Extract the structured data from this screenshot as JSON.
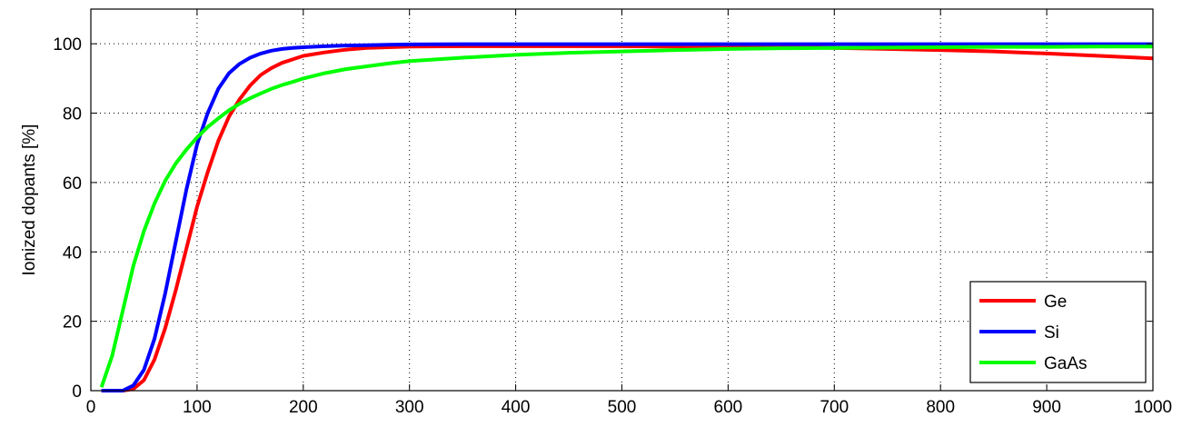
{
  "chart_data": {
    "type": "line",
    "title": "",
    "xlabel": "",
    "ylabel": "Ionized dopants [%]",
    "xlim": [
      0,
      1000
    ],
    "ylim": [
      0,
      110
    ],
    "xticks": [
      0,
      100,
      200,
      300,
      400,
      500,
      600,
      700,
      800,
      900,
      1000
    ],
    "yticks": [
      0,
      20,
      40,
      60,
      80,
      100
    ],
    "grid": true,
    "legend_position": "bottom-right",
    "series": [
      {
        "name": "Ge",
        "color": "#ff0000",
        "x": [
          10,
          20,
          30,
          40,
          50,
          60,
          70,
          80,
          90,
          100,
          110,
          120,
          130,
          140,
          150,
          160,
          170,
          180,
          190,
          200,
          220,
          240,
          260,
          280,
          300,
          350,
          400,
          450,
          500,
          550,
          600,
          650,
          700,
          750,
          800,
          850,
          900,
          950,
          1000
        ],
        "y": [
          0,
          0,
          0,
          0.5,
          3,
          9,
          18,
          29,
          41,
          53,
          63,
          72,
          79,
          84,
          88,
          91,
          93,
          94.5,
          95.5,
          96.5,
          97.5,
          98.3,
          98.8,
          99,
          99.2,
          99.3,
          99.3,
          99.3,
          99.3,
          99.2,
          99.1,
          99,
          98.8,
          98.5,
          98.2,
          97.8,
          97.2,
          96.5,
          95.8
        ]
      },
      {
        "name": "Si",
        "color": "#0000ff",
        "x": [
          10,
          20,
          30,
          40,
          50,
          60,
          70,
          80,
          90,
          100,
          110,
          120,
          130,
          140,
          150,
          160,
          170,
          180,
          190,
          200,
          220,
          240,
          260,
          280,
          300,
          350,
          400,
          500,
          600,
          700,
          800,
          900,
          1000
        ],
        "y": [
          0,
          0,
          0,
          1.5,
          6,
          15,
          28,
          43,
          58,
          71,
          80,
          87,
          91.5,
          94.2,
          96,
          97.2,
          98,
          98.5,
          98.8,
          99,
          99.3,
          99.5,
          99.6,
          99.7,
          99.8,
          99.9,
          99.9,
          99.9,
          99.9,
          99.9,
          99.9,
          99.9,
          99.9
        ]
      },
      {
        "name": "GaAs",
        "color": "#00ff00",
        "x": [
          10,
          20,
          30,
          40,
          50,
          60,
          70,
          80,
          90,
          100,
          110,
          120,
          130,
          140,
          150,
          160,
          170,
          180,
          190,
          200,
          220,
          240,
          260,
          280,
          300,
          350,
          400,
          450,
          500,
          550,
          600,
          650,
          700,
          750,
          800,
          850,
          900,
          950,
          1000
        ],
        "y": [
          1,
          10,
          23,
          36,
          46,
          54,
          60.5,
          65.5,
          69.5,
          73,
          76,
          78.5,
          80.8,
          82.7,
          84.3,
          85.7,
          87,
          88.1,
          89,
          90,
          91.5,
          92.7,
          93.5,
          94.3,
          95,
          96,
          96.8,
          97.4,
          97.8,
          98.2,
          98.5,
          98.7,
          98.8,
          98.9,
          99,
          99.1,
          99.1,
          99.2,
          99.2
        ]
      }
    ]
  }
}
